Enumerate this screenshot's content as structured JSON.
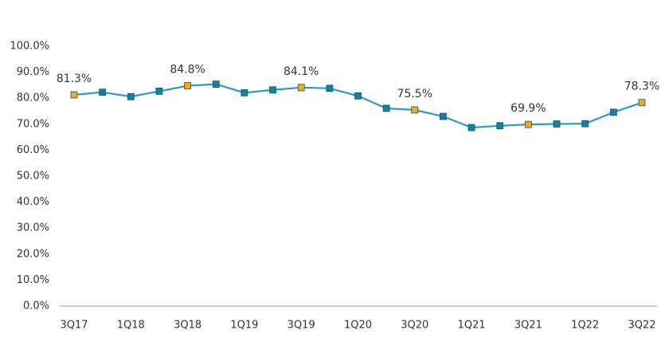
{
  "chart_data": {
    "type": "line",
    "categories": [
      "3Q17",
      null,
      "1Q18",
      null,
      "3Q18",
      null,
      "1Q19",
      null,
      "3Q19",
      null,
      "1Q20",
      null,
      "3Q20",
      null,
      "1Q21",
      null,
      "3Q21",
      null,
      "1Q22",
      null,
      "3Q22"
    ],
    "series": [
      {
        "color": "#2a9cc0",
        "values": [
          81.3,
          82.3,
          80.6,
          82.7,
          84.8,
          85.4,
          82.1,
          83.2,
          84.1,
          83.8,
          80.9,
          76.1,
          75.5,
          73.0,
          68.7,
          69.4,
          69.9,
          70.1,
          70.2,
          74.6,
          78.3
        ],
        "value_labels": [
          "81.3%",
          null,
          null,
          null,
          "84.8%",
          null,
          null,
          null,
          "84.1%",
          null,
          null,
          null,
          "75.5%",
          null,
          null,
          null,
          "69.9%",
          null,
          null,
          null,
          "78.3%"
        ],
        "point_colors": [
          "#f5a623",
          "#17809f",
          "#17809f",
          "#17809f",
          "#f5a623",
          "#17809f",
          "#17809f",
          "#17809f",
          "#f5a623",
          "#17809f",
          "#17809f",
          "#17809f",
          "#f5a623",
          "#17809f",
          "#17809f",
          "#17809f",
          "#f5a623",
          "#17809f",
          "#17809f",
          "#17809f",
          "#f5a623"
        ]
      }
    ],
    "ylim": [
      0,
      100
    ],
    "yticks": [
      {
        "value": 0,
        "label": "0.0%"
      },
      {
        "value": 10,
        "label": "10.0%"
      },
      {
        "value": 20,
        "label": "20.0%"
      },
      {
        "value": 30,
        "label": "30.0%"
      },
      {
        "value": 40,
        "label": "40.0%"
      },
      {
        "value": 50,
        "label": "50.0%"
      },
      {
        "value": 60,
        "label": "60.0%"
      },
      {
        "value": 70,
        "label": "70.0%"
      },
      {
        "value": 80,
        "label": "80.0%"
      },
      {
        "value": 90,
        "label": "90.0%"
      },
      {
        "value": 100,
        "label": "100.0%"
      }
    ],
    "grid": false
  }
}
